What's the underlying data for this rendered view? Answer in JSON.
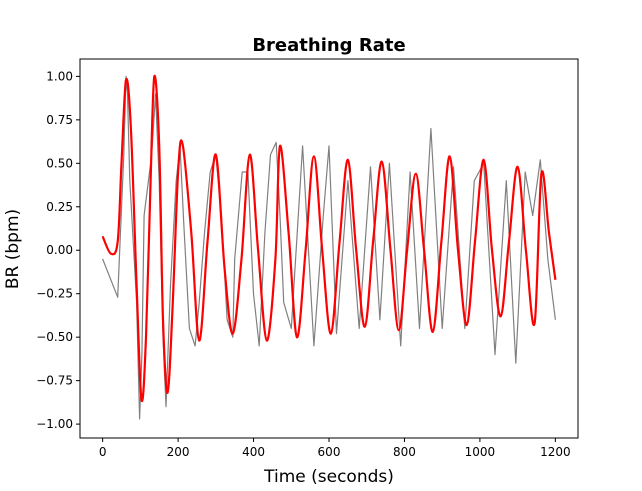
{
  "chart_data": {
    "type": "line",
    "title": "Breathing Rate",
    "xlabel": "Time (seconds)",
    "ylabel": "BR (bpm)",
    "xlim": [
      -60,
      1260
    ],
    "ylim": [
      -1.08,
      1.1
    ],
    "xticks": [
      0,
      200,
      400,
      600,
      800,
      1000,
      1200
    ],
    "xtick_labels": [
      "0",
      "200",
      "400",
      "600",
      "800",
      "1000",
      "1200"
    ],
    "yticks": [
      -1.0,
      -0.75,
      -0.5,
      -0.25,
      0.0,
      0.25,
      0.5,
      0.75,
      1.0
    ],
    "ytick_labels": [
      "−1.00",
      "−0.75",
      "−0.50",
      "−0.25",
      "0.00",
      "0.25",
      "0.50",
      "0.75",
      "1.00"
    ],
    "grid": false,
    "series": [
      {
        "color": "#808080",
        "style": "raw noisy signal, thin line",
        "x": [
          0,
          40,
          56,
          62,
          66,
          72,
          90,
          98,
          104,
          110,
          130,
          140,
          150,
          160,
          168,
          180,
          195,
          205,
          215,
          230,
          245,
          256,
          270,
          285,
          300,
          315,
          330,
          345,
          350,
          370,
          385,
          400,
          415,
          430,
          445,
          460,
          470,
          480,
          500,
          530,
          560,
          585,
          600,
          620,
          650,
          680,
          710,
          735,
          760,
          790,
          815,
          840,
          870,
          900,
          930,
          960,
          985,
          1010,
          1040,
          1070,
          1095,
          1120,
          1140,
          1160,
          1180,
          1200
        ],
        "y": [
          -0.05,
          -0.27,
          0.55,
          1.0,
          0.9,
          0.4,
          -0.3,
          -0.97,
          -0.6,
          0.2,
          0.55,
          0.9,
          0.4,
          -0.5,
          -0.9,
          -0.2,
          0.4,
          0.6,
          0.15,
          -0.45,
          -0.55,
          -0.3,
          0.1,
          0.45,
          0.55,
          0.2,
          -0.4,
          -0.5,
          -0.05,
          0.45,
          0.45,
          -0.25,
          -0.55,
          0.1,
          0.55,
          0.62,
          0.2,
          -0.3,
          -0.45,
          0.6,
          -0.55,
          0.2,
          0.6,
          -0.48,
          0.4,
          -0.45,
          0.48,
          -0.4,
          0.5,
          -0.55,
          0.45,
          -0.45,
          0.7,
          -0.45,
          0.48,
          -0.45,
          0.4,
          0.5,
          -0.6,
          0.4,
          -0.65,
          0.45,
          0.2,
          0.52,
          -0.05,
          -0.4
        ]
      },
      {
        "color": "#ff0000",
        "style": "smoothed fit, thick line",
        "x": [
          0,
          22,
          40,
          50,
          62,
          75,
          90,
          103,
          115,
          127,
          137,
          150,
          160,
          172,
          185,
          200,
          212,
          235,
          256,
          278,
          300,
          323,
          345,
          368,
          390,
          412,
          435,
          458,
          470,
          493,
          515,
          538,
          560,
          582,
          605,
          628,
          650,
          672,
          695,
          717,
          740,
          763,
          785,
          807,
          830,
          852,
          875,
          898,
          920,
          942,
          965,
          987,
          1010,
          1032,
          1055,
          1077,
          1100,
          1122,
          1145,
          1163,
          1183,
          1200
        ],
        "y": [
          0.08,
          -0.02,
          0.05,
          0.5,
          0.98,
          0.7,
          -0.2,
          -0.86,
          -0.5,
          0.4,
          1.0,
          0.6,
          -0.4,
          -0.82,
          -0.35,
          0.45,
          0.61,
          0.1,
          -0.52,
          0.05,
          0.55,
          -0.1,
          -0.48,
          -0.05,
          0.55,
          0.0,
          -0.52,
          -0.05,
          0.6,
          0.1,
          -0.5,
          0.0,
          0.54,
          0.0,
          -0.48,
          0.05,
          0.52,
          0.0,
          -0.44,
          0.05,
          0.51,
          0.0,
          -0.46,
          0.0,
          0.44,
          0.0,
          -0.47,
          0.05,
          0.54,
          0.0,
          -0.43,
          0.05,
          0.52,
          0.0,
          -0.38,
          0.05,
          0.48,
          0.0,
          -0.42,
          0.44,
          0.1,
          -0.17
        ]
      }
    ]
  }
}
